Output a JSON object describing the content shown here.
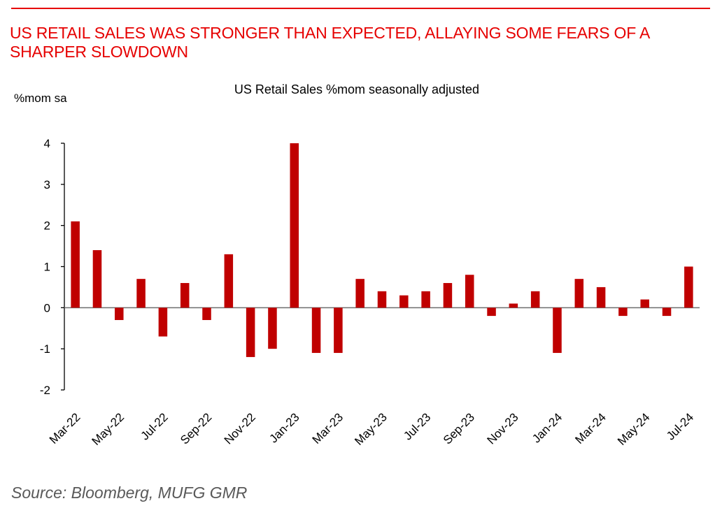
{
  "header": {
    "headline": "US RETAIL SALES WAS STRONGER THAN EXPECTED, ALLAYING SOME FEARS OF A SHARPER SLOWDOWN"
  },
  "footer": {
    "source": "Source: Bloomberg, MUFG GMR"
  },
  "colors": {
    "accent": "#e60000",
    "bar": "#c00000"
  },
  "chart_data": {
    "type": "bar",
    "title": "US Retail Sales %mom seasonally adjusted",
    "ylabel": "%mom sa",
    "xlabel": "",
    "ylim": [
      -2,
      4
    ],
    "yticks": [
      -2,
      -1,
      0,
      1,
      2,
      3,
      4
    ],
    "grid": false,
    "categories": [
      "Mar-22",
      "Apr-22",
      "May-22",
      "Jun-22",
      "Jul-22",
      "Aug-22",
      "Sep-22",
      "Oct-22",
      "Nov-22",
      "Dec-22",
      "Jan-23",
      "Feb-23",
      "Mar-23",
      "Apr-23",
      "May-23",
      "Jun-23",
      "Jul-23",
      "Aug-23",
      "Sep-23",
      "Oct-23",
      "Nov-23",
      "Dec-23",
      "Jan-24",
      "Feb-24",
      "Mar-24",
      "Apr-24",
      "May-24",
      "Jun-24",
      "Jul-24"
    ],
    "xtick_labels": [
      "Mar-22",
      "May-22",
      "Jul-22",
      "Sep-22",
      "Nov-22",
      "Jan-23",
      "Mar-23",
      "May-23",
      "Jul-23",
      "Sep-23",
      "Nov-23",
      "Jan-24",
      "Mar-24",
      "May-24",
      "Jul-24"
    ],
    "series": [
      {
        "name": "US Retail Sales %mom sa",
        "values": [
          2.1,
          1.4,
          -0.3,
          0.7,
          -0.7,
          0.6,
          -0.3,
          1.3,
          -1.2,
          -1.0,
          4.0,
          -1.1,
          -1.1,
          0.7,
          0.4,
          0.3,
          0.4,
          0.6,
          0.8,
          -0.2,
          0.1,
          0.4,
          -1.1,
          0.7,
          0.5,
          -0.2,
          0.2,
          -0.2,
          1.0
        ]
      }
    ]
  }
}
